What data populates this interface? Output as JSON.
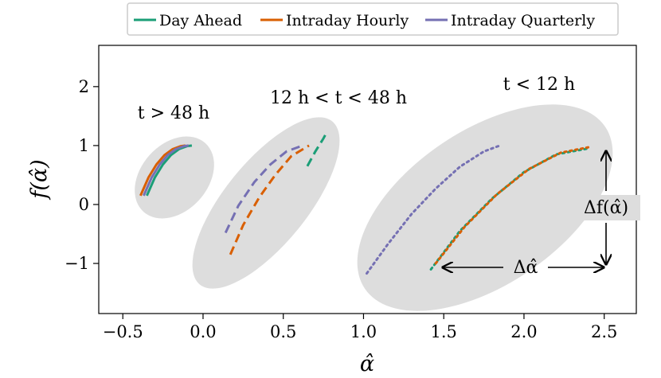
{
  "chart_data": {
    "type": "line",
    "title": "",
    "xlabel": "α̂",
    "ylabel": "f(α̂)",
    "xlim": [
      -0.65,
      2.7
    ],
    "ylim": [
      -1.85,
      2.7
    ],
    "x_ticks": [
      -0.5,
      0.0,
      0.5,
      1.0,
      1.5,
      2.0,
      2.5
    ],
    "x_tick_labels": [
      "−0.5",
      "0.0",
      "0.5",
      "1.0",
      "1.5",
      "2.0",
      "2.5"
    ],
    "y_ticks": [
      -1,
      0,
      1,
      2
    ],
    "y_tick_labels": [
      "−1",
      "0",
      "1",
      "2"
    ],
    "grid": false,
    "legend_position": "top-center-outside",
    "legend": [
      {
        "name": "Day Ahead",
        "color": "#1b9e77"
      },
      {
        "name": "Intraday Hourly",
        "color": "#d95f02"
      },
      {
        "name": "Intraday Quarterly",
        "color": "#7570b3"
      }
    ],
    "regions": [
      {
        "label": "t > 48 h",
        "center": [
          -0.27,
          0.45
        ],
        "shape": "ellipse"
      },
      {
        "label": "12 h < t < 48 h",
        "center": [
          0.44,
          0.0
        ],
        "shape": "ellipse"
      },
      {
        "label": "t < 12 h",
        "center": [
          1.6,
          -0.05
        ],
        "shape": "ellipse"
      }
    ],
    "series": [
      {
        "series": "Day Ahead",
        "region": "t > 48 h",
        "style": "solid",
        "x": [
          -0.35,
          -0.3,
          -0.25,
          -0.2,
          -0.15,
          -0.1,
          -0.07
        ],
        "y": [
          0.15,
          0.46,
          0.68,
          0.84,
          0.94,
          0.99,
          1.0
        ]
      },
      {
        "series": "Intraday Hourly",
        "region": "t > 48 h",
        "style": "solid",
        "x": [
          -0.39,
          -0.34,
          -0.29,
          -0.24,
          -0.19,
          -0.14,
          -0.11
        ],
        "y": [
          0.15,
          0.46,
          0.68,
          0.84,
          0.94,
          0.99,
          1.0
        ]
      },
      {
        "series": "Intraday Quarterly",
        "region": "t > 48 h",
        "style": "solid",
        "x": [
          -0.37,
          -0.32,
          -0.27,
          -0.22,
          -0.17,
          -0.12,
          -0.09
        ],
        "y": [
          0.15,
          0.46,
          0.68,
          0.84,
          0.94,
          0.99,
          1.0
        ]
      },
      {
        "series": "Day Ahead",
        "region": "12 h < t < 48 h",
        "style": "dashed",
        "x": [
          0.65,
          0.7,
          0.75,
          0.77
        ],
        "y": [
          0.65,
          0.9,
          1.12,
          1.22
        ]
      },
      {
        "series": "Intraday Hourly",
        "region": "12 h < t < 48 h",
        "style": "dashed",
        "x": [
          0.17,
          0.25,
          0.35,
          0.45,
          0.55,
          0.66
        ],
        "y": [
          -0.85,
          -0.35,
          0.12,
          0.5,
          0.82,
          1.0
        ]
      },
      {
        "series": "Intraday Quarterly",
        "region": "12 h < t < 48 h",
        "style": "dashed",
        "x": [
          0.14,
          0.22,
          0.32,
          0.42,
          0.52,
          0.62
        ],
        "y": [
          -0.48,
          -0.02,
          0.38,
          0.68,
          0.9,
          1.0
        ]
      },
      {
        "series": "Day Ahead",
        "region": "t < 12 h",
        "style": "dotted",
        "x": [
          1.42,
          1.6,
          1.8,
          2.0,
          2.2,
          2.4
        ],
        "y": [
          -1.1,
          -0.45,
          0.1,
          0.55,
          0.85,
          0.95
        ]
      },
      {
        "series": "Intraday Hourly",
        "region": "t < 12 h",
        "style": "dotted",
        "x": [
          1.45,
          1.63,
          1.83,
          2.03,
          2.23,
          2.4
        ],
        "y": [
          -1.0,
          -0.38,
          0.17,
          0.6,
          0.88,
          0.97
        ]
      },
      {
        "series": "Intraday Quarterly",
        "region": "t < 12 h",
        "style": "dotted",
        "x": [
          1.02,
          1.15,
          1.3,
          1.45,
          1.6,
          1.75,
          1.85
        ],
        "y": [
          -1.17,
          -0.68,
          -0.16,
          0.27,
          0.64,
          0.9,
          1.0
        ]
      }
    ],
    "annotations": [
      {
        "text": "Δα̂",
        "type": "double-arrow-horizontal",
        "from": [
          1.42,
          -1.1
        ],
        "to": [
          2.4,
          -1.1
        ]
      },
      {
        "text": "Δf(α̂)",
        "type": "double-arrow-vertical",
        "from": [
          2.4,
          0.92
        ],
        "to": [
          2.4,
          -1.1
        ]
      }
    ]
  }
}
